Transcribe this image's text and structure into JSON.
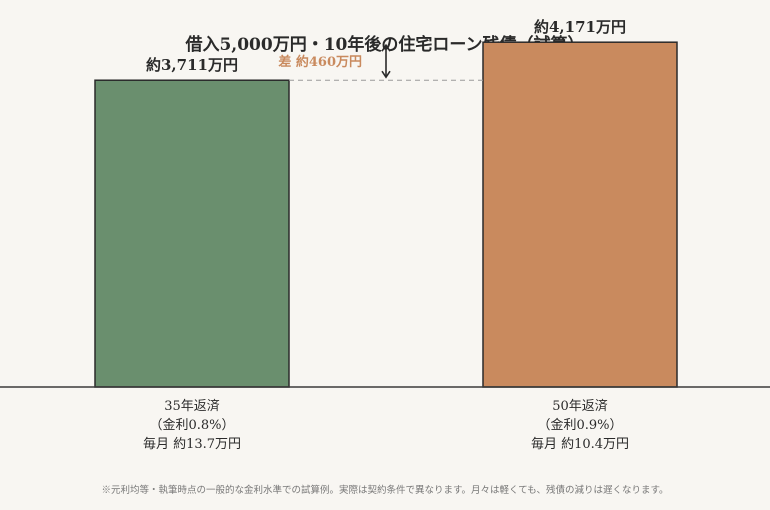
{
  "colors": {
    "background": "#f8f6f2",
    "bar_35": "#6a8f6e",
    "bar_50": "#c98a5e",
    "difference": "#c98a5e",
    "axis": "#3a3a3a"
  },
  "chart_data": {
    "type": "bar",
    "title": "借入5,000万円・10年後の住宅ローン残債（試算）",
    "unit": "万円",
    "ylim": [
      0,
      4500
    ],
    "grid": false,
    "legend": "none",
    "bars": [
      {
        "value": 3711,
        "value_label": "約3,711万円",
        "label_lines": [
          "35年返済",
          "（金利0.8%）",
          "毎月 約13.7万円"
        ],
        "color": "#6a8f6e"
      },
      {
        "value": 4171,
        "value_label": "約4,171万円",
        "label_lines": [
          "50年返済",
          "（金利0.9%）",
          "毎月 約10.4万円"
        ],
        "color": "#c98a5e"
      }
    ],
    "difference": {
      "value": 460,
      "label": "差 約460万円",
      "arrow_icon": "double-arrow-vertical-icon"
    },
    "footnote": "※元利均等・執筆時点の一般的な金利水準での試算例。実際は契約条件で異なります。月々は軽くても、残債の減りは遅くなります。"
  }
}
